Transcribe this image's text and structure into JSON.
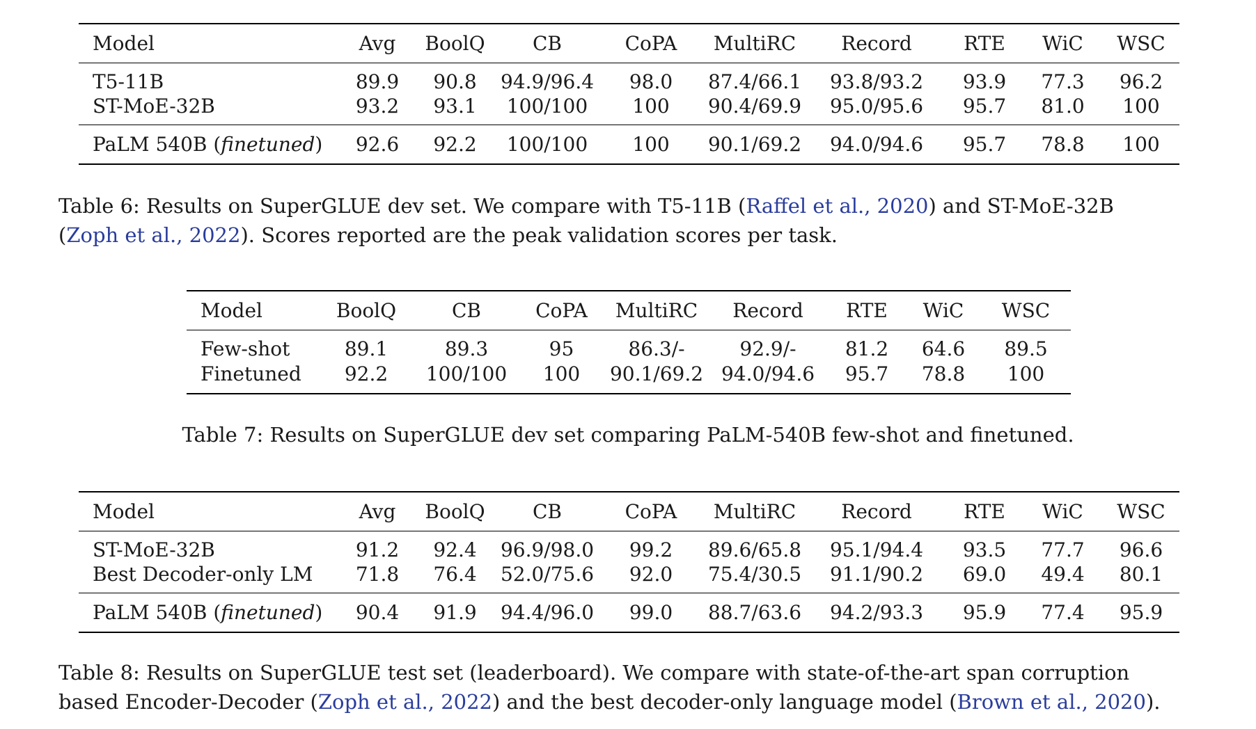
{
  "table6": {
    "columns": [
      "Model",
      "Avg",
      "BoolQ",
      "CB",
      "CoPA",
      "MultiRC",
      "Record",
      "RTE",
      "WiC",
      "WSC"
    ],
    "rows_group1": [
      {
        "model": "T5-11B",
        "values": [
          "89.9",
          "90.8",
          "94.9/96.4",
          "98.0",
          "87.4/66.1",
          "93.8/93.2",
          "93.9",
          "77.3",
          "96.2"
        ]
      },
      {
        "model": "ST-MoE-32B",
        "values": [
          "93.2",
          "93.1",
          "100/100",
          "100",
          "90.4/69.9",
          "95.0/95.6",
          "95.7",
          "81.0",
          "100"
        ]
      }
    ],
    "row_palm": {
      "model_prefix": "PaLM 540B (",
      "model_italic": "finetuned",
      "model_suffix": ")",
      "values": [
        "92.6",
        "92.2",
        "100/100",
        "100",
        "90.1/69.2",
        "94.0/94.6",
        "95.7",
        "78.8",
        "100"
      ]
    },
    "caption": {
      "p1": "Table 6: Results on SuperGLUE dev set. We compare with T5-11B (",
      "cite1_name": "Raffel et al.",
      "sep1": ", ",
      "cite1_year": "2020",
      "p2": ") and ST-MoE-32B",
      "p3": "(",
      "cite2_name": "Zoph et al.",
      "sep2": ", ",
      "cite2_year": "2022",
      "p4": "). Scores reported are the peak validation scores per task."
    }
  },
  "table7": {
    "columns": [
      "Model",
      "BoolQ",
      "CB",
      "CoPA",
      "MultiRC",
      "Record",
      "RTE",
      "WiC",
      "WSC"
    ],
    "rows": [
      {
        "model": "Few-shot",
        "values": [
          "89.1",
          "89.3",
          "95",
          "86.3/-",
          "92.9/-",
          "81.2",
          "64.6",
          "89.5"
        ]
      },
      {
        "model": "Finetuned",
        "values": [
          "92.2",
          "100/100",
          "100",
          "90.1/69.2",
          "94.0/94.6",
          "95.7",
          "78.8",
          "100"
        ]
      }
    ],
    "caption": "Table 7: Results on SuperGLUE dev set comparing PaLM-540B few-shot and finetuned."
  },
  "table8": {
    "columns": [
      "Model",
      "Avg",
      "BoolQ",
      "CB",
      "CoPA",
      "MultiRC",
      "Record",
      "RTE",
      "WiC",
      "WSC"
    ],
    "rows_group1": [
      {
        "model": "ST-MoE-32B",
        "values": [
          "91.2",
          "92.4",
          "96.9/98.0",
          "99.2",
          "89.6/65.8",
          "95.1/94.4",
          "93.5",
          "77.7",
          "96.6"
        ]
      },
      {
        "model": "Best Decoder-only LM",
        "values": [
          "71.8",
          "76.4",
          "52.0/75.6",
          "92.0",
          "75.4/30.5",
          "91.1/90.2",
          "69.0",
          "49.4",
          "80.1"
        ]
      }
    ],
    "row_palm": {
      "model_prefix": "PaLM 540B (",
      "model_italic": "finetuned",
      "model_suffix": ")",
      "values": [
        "90.4",
        "91.9",
        "94.4/96.0",
        "99.0",
        "88.7/63.6",
        "94.2/93.3",
        "95.9",
        "77.4",
        "95.9"
      ]
    },
    "caption": {
      "p1": "Table 8: Results on SuperGLUE test set (leaderboard). We compare with state-of-the-art span corruption",
      "p2": "based Encoder-Decoder (",
      "cite1_name": "Zoph et al.",
      "sep1": ", ",
      "cite1_year": "2022",
      "p3": ") and the best decoder-only language model (",
      "cite2_name": "Brown et al.",
      "sep2": ", ",
      "cite2_year": "2020",
      "p4": ")."
    }
  }
}
